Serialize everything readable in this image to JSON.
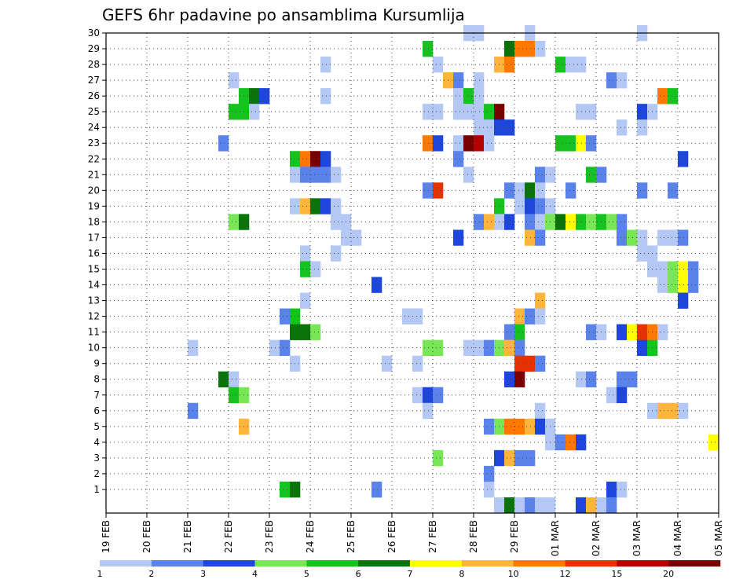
{
  "chart_data": {
    "type": "heatmap",
    "title": "GEFS 6hr padavine po ansamblima Kursumlija",
    "xlabel": "",
    "ylabel": "",
    "x_ticks": [
      "19 FEB",
      "20 FEB",
      "21 FEB",
      "22 FEB",
      "23 FEB",
      "24 FEB",
      "25 FEB",
      "26 FEB",
      "27 FEB",
      "28 FEB",
      "29 FEB",
      "01 MAR",
      "02 MAR",
      "03 MAR",
      "04 MAR",
      "05 MAR"
    ],
    "y_ticks": [
      1,
      2,
      3,
      4,
      5,
      6,
      7,
      8,
      9,
      10,
      11,
      12,
      13,
      14,
      15,
      16,
      17,
      18,
      19,
      20,
      21,
      22,
      23,
      24,
      25,
      26,
      27,
      28,
      29,
      30
    ],
    "time_steps_per_day": 4,
    "grid": true,
    "legend_placement": "bottom",
    "colorbar": {
      "levels": [
        "1",
        "2",
        "3",
        "4",
        "5",
        "6",
        "7",
        "8",
        "10",
        "12",
        "15",
        "20"
      ],
      "colors": [
        "#b4c8f5",
        "#5a82eb",
        "#1e46dc",
        "#78e655",
        "#14c31e",
        "#0a730a",
        "#ffff00",
        "#ffb43c",
        "#ff7800",
        "#e63200",
        "#b40000",
        "#780000"
      ]
    },
    "cells": [
      {
        "m": 30,
        "t": [
          [
            27.75,
            1
          ],
          [
            28,
            1
          ],
          [
            29.25,
            1
          ],
          [
            32,
            1
          ]
        ]
      },
      {
        "m": 29,
        "t": [
          [
            26.75,
            5
          ],
          [
            28.75,
            6
          ],
          [
            29,
            9
          ],
          [
            29.25,
            9
          ],
          [
            29.5,
            1
          ]
        ]
      },
      {
        "m": 28,
        "t": [
          [
            24.25,
            1
          ],
          [
            27,
            1
          ],
          [
            28.5,
            8
          ],
          [
            28.75,
            9
          ],
          [
            30,
            5
          ],
          [
            30.25,
            1
          ],
          [
            30.5,
            1
          ]
        ]
      },
      {
        "m": 27,
        "t": [
          [
            22,
            1
          ],
          [
            27.25,
            8
          ],
          [
            27.5,
            2
          ],
          [
            28,
            1
          ],
          [
            31.25,
            2
          ],
          [
            31.5,
            1
          ]
        ]
      },
      {
        "m": 26,
        "t": [
          [
            22.25,
            5
          ],
          [
            22.5,
            6
          ],
          [
            22.75,
            3
          ],
          [
            24.25,
            1
          ],
          [
            27.5,
            1
          ],
          [
            27.75,
            5
          ],
          [
            28,
            1
          ],
          [
            32.5,
            9
          ],
          [
            32.75,
            5
          ]
        ]
      },
      {
        "m": 25,
        "t": [
          [
            22,
            5
          ],
          [
            22.25,
            5
          ],
          [
            22.5,
            1
          ],
          [
            26.75,
            1
          ],
          [
            27,
            1
          ],
          [
            27.5,
            1
          ],
          [
            27.75,
            1
          ],
          [
            28,
            1
          ],
          [
            28.25,
            5
          ],
          [
            28.5,
            12
          ],
          [
            30.5,
            1
          ],
          [
            30.75,
            1
          ],
          [
            32,
            3
          ],
          [
            32.25,
            1
          ]
        ]
      },
      {
        "m": 24,
        "t": [
          [
            28,
            1
          ],
          [
            28.25,
            1
          ],
          [
            28.5,
            3
          ],
          [
            28.75,
            3
          ],
          [
            31.5,
            1
          ],
          [
            32,
            1
          ]
        ]
      },
      {
        "m": 23,
        "t": [
          [
            21.75,
            2
          ],
          [
            26.75,
            9
          ],
          [
            27,
            3
          ],
          [
            27.5,
            1
          ],
          [
            27.75,
            12
          ],
          [
            28,
            11
          ],
          [
            28.25,
            1
          ],
          [
            30,
            5
          ],
          [
            30.25,
            5
          ],
          [
            30.5,
            7
          ],
          [
            30.75,
            2
          ]
        ]
      },
      {
        "m": 22,
        "t": [
          [
            23.5,
            5
          ],
          [
            23.75,
            9
          ],
          [
            24,
            12
          ],
          [
            24.25,
            3
          ],
          [
            27.5,
            2
          ],
          [
            33,
            3
          ]
        ]
      },
      {
        "m": 21,
        "t": [
          [
            23.5,
            1
          ],
          [
            23.75,
            2
          ],
          [
            24,
            2
          ],
          [
            24.25,
            2
          ],
          [
            24.5,
            1
          ],
          [
            27.75,
            1
          ],
          [
            29.5,
            2
          ],
          [
            29.75,
            1
          ],
          [
            30.75,
            5
          ],
          [
            31,
            2
          ]
        ]
      },
      {
        "m": 20,
        "t": [
          [
            26.75,
            2
          ],
          [
            27,
            10
          ],
          [
            28.75,
            2
          ],
          [
            29,
            1
          ],
          [
            29.25,
            6
          ],
          [
            29.5,
            1
          ],
          [
            30.25,
            2
          ],
          [
            32,
            2
          ],
          [
            32.75,
            2
          ]
        ]
      },
      {
        "m": 19,
        "t": [
          [
            23.5,
            1
          ],
          [
            23.75,
            8
          ],
          [
            24,
            6
          ],
          [
            24.25,
            3
          ],
          [
            24.5,
            1
          ],
          [
            28.5,
            5
          ],
          [
            29,
            1
          ],
          [
            29.25,
            3
          ],
          [
            29.5,
            2
          ],
          [
            29.75,
            1
          ]
        ]
      },
      {
        "m": 18,
        "t": [
          [
            22,
            4
          ],
          [
            22.25,
            6
          ],
          [
            24.5,
            1
          ],
          [
            24.75,
            1
          ],
          [
            28,
            2
          ],
          [
            28.25,
            8
          ],
          [
            28.5,
            1
          ],
          [
            28.75,
            3
          ],
          [
            29.25,
            2
          ],
          [
            29.5,
            1
          ],
          [
            29.75,
            4
          ],
          [
            30,
            6
          ],
          [
            30.25,
            7
          ],
          [
            30.5,
            5
          ],
          [
            30.75,
            4
          ],
          [
            31,
            5
          ],
          [
            31.25,
            4
          ],
          [
            31.5,
            2
          ]
        ]
      },
      {
        "m": 17,
        "t": [
          [
            24.75,
            1
          ],
          [
            25,
            1
          ],
          [
            27.5,
            3
          ],
          [
            29.25,
            8
          ],
          [
            29.5,
            2
          ],
          [
            31.5,
            2
          ],
          [
            31.75,
            4
          ],
          [
            32,
            1
          ],
          [
            32.5,
            1
          ],
          [
            32.75,
            1
          ],
          [
            33,
            2
          ]
        ]
      },
      {
        "m": 16,
        "t": [
          [
            23.75,
            1
          ],
          [
            24.5,
            1
          ],
          [
            32,
            1
          ],
          [
            32.25,
            1
          ]
        ]
      },
      {
        "m": 15,
        "t": [
          [
            23.75,
            5
          ],
          [
            24,
            1
          ],
          [
            32.25,
            1
          ],
          [
            32.5,
            1
          ],
          [
            32.75,
            4
          ],
          [
            33,
            7
          ],
          [
            33.25,
            2
          ]
        ]
      },
      {
        "m": 14,
        "t": [
          [
            25.5,
            3
          ],
          [
            32.5,
            1
          ],
          [
            32.75,
            4
          ],
          [
            33,
            7
          ],
          [
            33.25,
            2
          ]
        ]
      },
      {
        "m": 13,
        "t": [
          [
            23.75,
            1
          ],
          [
            29.5,
            8
          ],
          [
            33,
            3
          ]
        ]
      },
      {
        "m": 12,
        "t": [
          [
            23.25,
            2
          ],
          [
            23.5,
            5
          ],
          [
            26.25,
            1
          ],
          [
            26.5,
            1
          ],
          [
            29,
            8
          ],
          [
            29.25,
            2
          ],
          [
            29.5,
            1
          ]
        ]
      },
      {
        "m": 11,
        "t": [
          [
            23.5,
            6
          ],
          [
            23.75,
            6
          ],
          [
            24,
            4
          ],
          [
            28.75,
            2
          ],
          [
            29,
            5
          ],
          [
            30.75,
            2
          ],
          [
            31,
            1
          ],
          [
            31.5,
            3
          ],
          [
            31.75,
            7
          ],
          [
            32,
            10
          ],
          [
            32.25,
            9
          ],
          [
            32.5,
            1
          ]
        ]
      },
      {
        "m": 10,
        "t": [
          [
            21,
            1
          ],
          [
            23,
            1
          ],
          [
            23.25,
            2
          ],
          [
            26.75,
            4
          ],
          [
            27,
            4
          ],
          [
            27.75,
            1
          ],
          [
            28,
            1
          ],
          [
            28.25,
            2
          ],
          [
            28.5,
            4
          ],
          [
            28.75,
            8
          ],
          [
            29,
            2
          ],
          [
            32,
            3
          ],
          [
            32.25,
            5
          ]
        ]
      },
      {
        "m": 9,
        "t": [
          [
            23.5,
            1
          ],
          [
            25.75,
            1
          ],
          [
            26.5,
            1
          ],
          [
            29,
            10
          ],
          [
            29.25,
            10
          ],
          [
            29.5,
            2
          ]
        ]
      },
      {
        "m": 8,
        "t": [
          [
            21.75,
            6
          ],
          [
            22,
            1
          ],
          [
            28.75,
            3
          ],
          [
            29,
            12
          ],
          [
            30.5,
            1
          ],
          [
            30.75,
            2
          ],
          [
            31.5,
            2
          ],
          [
            31.75,
            2
          ]
        ]
      },
      {
        "m": 7,
        "t": [
          [
            22,
            5
          ],
          [
            22.25,
            4
          ],
          [
            26.5,
            1
          ],
          [
            26.75,
            3
          ],
          [
            27,
            2
          ],
          [
            31.25,
            1
          ],
          [
            31.5,
            3
          ]
        ]
      },
      {
        "m": 6,
        "t": [
          [
            21,
            2
          ],
          [
            26.75,
            1
          ],
          [
            29.5,
            1
          ],
          [
            32.25,
            1
          ],
          [
            32.5,
            8
          ],
          [
            32.75,
            8
          ],
          [
            33,
            1
          ]
        ]
      },
      {
        "m": 5,
        "t": [
          [
            22.25,
            8
          ],
          [
            28.25,
            2
          ],
          [
            28.5,
            4
          ],
          [
            28.75,
            9
          ],
          [
            29,
            9
          ],
          [
            29.25,
            8
          ],
          [
            29.5,
            3
          ],
          [
            29.75,
            1
          ]
        ]
      },
      {
        "m": 4,
        "t": [
          [
            29.75,
            1
          ],
          [
            30,
            2
          ],
          [
            30.25,
            9
          ],
          [
            30.5,
            3
          ],
          [
            33.75,
            7
          ]
        ]
      },
      {
        "m": 3,
        "t": [
          [
            27,
            4
          ],
          [
            28.5,
            3
          ],
          [
            28.75,
            8
          ],
          [
            29,
            2
          ],
          [
            29.25,
            2
          ]
        ]
      },
      {
        "m": 2,
        "t": [
          [
            28.25,
            2
          ]
        ]
      },
      {
        "m": 1,
        "t": [
          [
            23.25,
            5
          ],
          [
            23.5,
            6
          ],
          [
            25.5,
            2
          ],
          [
            28.25,
            1
          ],
          [
            31.25,
            3
          ],
          [
            31.5,
            1
          ]
        ]
      },
      {
        "m": 0,
        "t": [
          [
            28.5,
            1
          ],
          [
            28.75,
            6
          ],
          [
            29,
            1
          ],
          [
            29.25,
            2
          ],
          [
            29.5,
            1
          ],
          [
            29.75,
            1
          ],
          [
            30.5,
            3
          ],
          [
            30.75,
            8
          ],
          [
            31,
            1
          ],
          [
            31.25,
            2
          ]
        ]
      }
    ]
  }
}
